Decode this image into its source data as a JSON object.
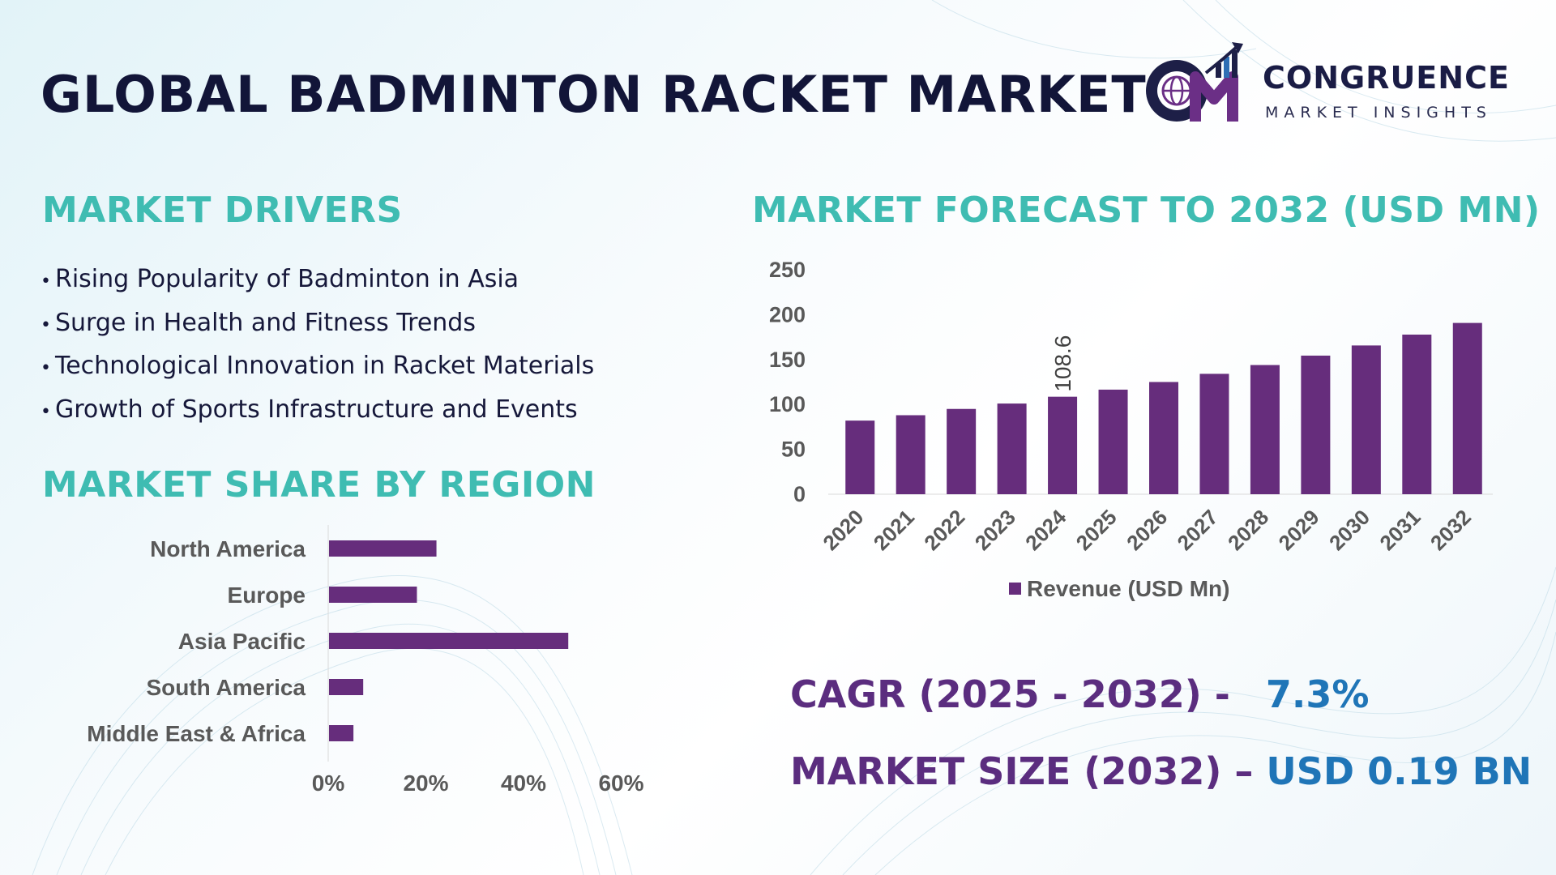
{
  "title": "GLOBAL BADMINTON RACKET MARKET",
  "logo": {
    "name": "CONGRUENCE",
    "tagline": "MARKET INSIGHTS",
    "monogram": "CM",
    "icon": "globe-growth-arrow-icon"
  },
  "drivers": {
    "heading": "MARKET DRIVERS",
    "bullet": "•",
    "items": [
      "Rising Popularity of Badminton in Asia",
      "Surge in Health and Fitness Trends",
      "Technological Innovation in Racket Materials",
      "Growth of Sports Infrastructure and Events"
    ]
  },
  "region_heading": "MARKET SHARE BY REGION",
  "forecast_heading": "MARKET FORECAST TO 2032 (USD MN)",
  "summary": {
    "cagr_label": "CAGR (2025 - 2032) -",
    "cagr_value": "7.3%",
    "size_label": "MARKET SIZE (2032) –",
    "size_value": "USD 0.19 BN"
  },
  "colors": {
    "title": "#121538",
    "heading_teal": "#3fbcb2",
    "bar_purple": "#662d7c",
    "summary_label": "#5b2d7f",
    "summary_value": "#1f75b7",
    "axis_text": "#595959"
  },
  "chart_data": [
    {
      "type": "bar",
      "orientation": "horizontal",
      "categories": [
        "North America",
        "Europe",
        "Asia Pacific",
        "South America",
        "Middle East & Africa"
      ],
      "values": [
        22,
        18,
        49,
        7,
        5
      ],
      "xlim": [
        0,
        60
      ],
      "xticks": [
        "0%",
        "20%",
        "40%",
        "60%"
      ],
      "grid": false,
      "legend": "none"
    },
    {
      "type": "bar",
      "categories": [
        "2020",
        "2021",
        "2022",
        "2023",
        "2024",
        "2025",
        "2026",
        "2027",
        "2028",
        "2029",
        "2030",
        "2031",
        "2032"
      ],
      "series": [
        {
          "name": "Revenue (USD Mn)",
          "values": [
            82,
            88,
            95,
            101,
            108.6,
            116.5,
            125,
            134.1,
            143.9,
            154.4,
            165.7,
            177.8,
            190.8
          ]
        }
      ],
      "data_labels": [
        {
          "category": "2024",
          "text": "108.6"
        }
      ],
      "ylim": [
        0,
        250
      ],
      "yticks": [
        0,
        50,
        100,
        150,
        200,
        250
      ],
      "grid": false,
      "legend": "bottom"
    }
  ]
}
